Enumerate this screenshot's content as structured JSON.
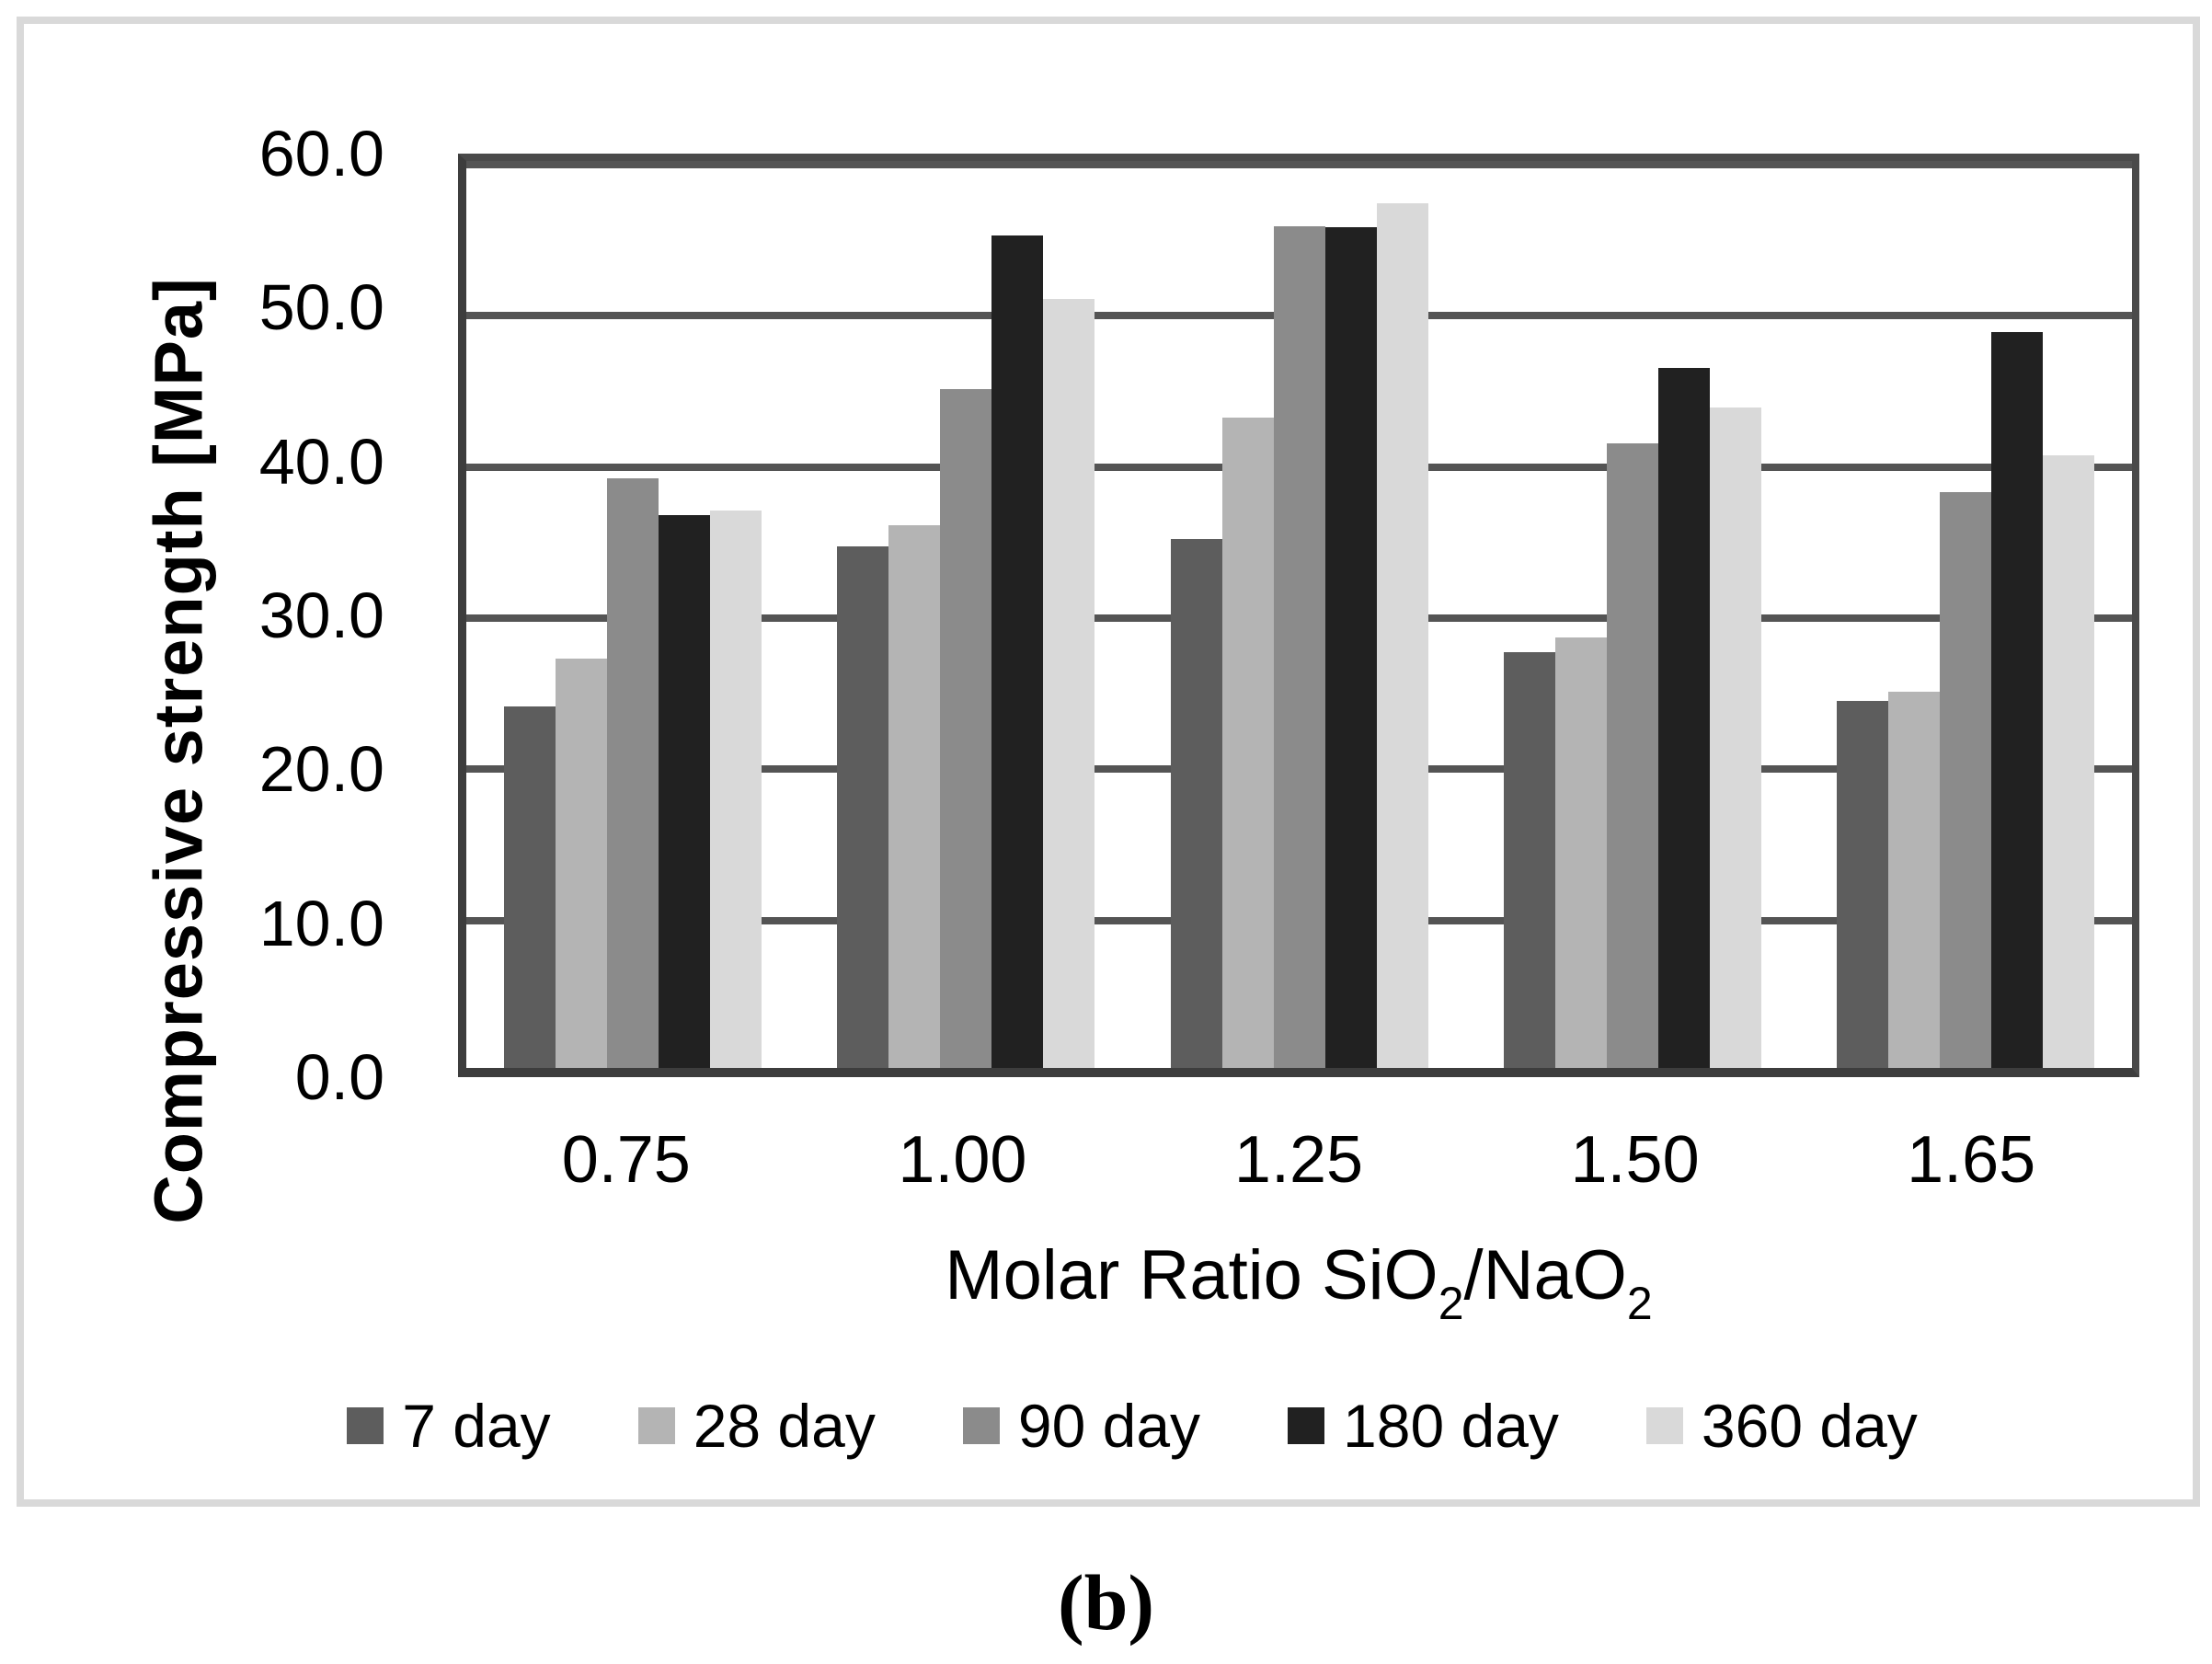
{
  "figure": {
    "caption": "(b)"
  },
  "chart_data": {
    "type": "bar",
    "title": "",
    "xlabel": "Molar Ratio SiO2/NaO2",
    "xlabel_parts": [
      {
        "t": "Molar Ratio SiO"
      },
      {
        "t": "2",
        "sub": true
      },
      {
        "t": "/NaO"
      },
      {
        "t": "2",
        "sub": true
      }
    ],
    "ylabel": "Compressive strength [MPa]",
    "categories": [
      "0.75",
      "1.00",
      "1.25",
      "1.50",
      "1.65"
    ],
    "series": [
      {
        "name": "7 day",
        "color": "#5d5d5d",
        "values": [
          23.9,
          34.5,
          35.0,
          27.5,
          24.3
        ]
      },
      {
        "name": "28 day",
        "color": "#b4b4b4",
        "values": [
          27.1,
          35.9,
          43.0,
          28.5,
          24.9
        ]
      },
      {
        "name": "90 day",
        "color": "#8b8b8b",
        "values": [
          39.0,
          44.9,
          55.7,
          41.3,
          38.1
        ]
      },
      {
        "name": "180 day",
        "color": "#212121",
        "values": [
          36.6,
          55.1,
          55.6,
          46.3,
          48.7
        ]
      },
      {
        "name": "360 day",
        "color": "#d9d9d9",
        "values": [
          36.9,
          50.9,
          57.2,
          43.7,
          40.5
        ]
      }
    ],
    "ylim": [
      0,
      60
    ],
    "ytick_step": 10,
    "ytick_labels": [
      "0.0",
      "10.0",
      "20.0",
      "30.0",
      "40.0",
      "50.0",
      "60.0"
    ],
    "grid": true,
    "legend_position": "bottom"
  },
  "colors": {
    "plot_border": "#4a4a4a",
    "axis_line": "#3d3d3d",
    "gridline": "#545454",
    "figure_frame": "#d9d9d9",
    "background": "#ffffff",
    "text": "#000000"
  }
}
